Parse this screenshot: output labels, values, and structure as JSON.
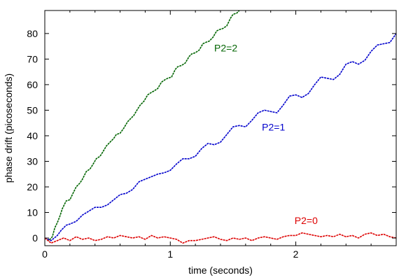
{
  "chart_data": {
    "type": "line",
    "title": "",
    "xlabel": "time (seconds)",
    "ylabel": "phase drift (picoseconds)",
    "xlim": [
      0,
      2.8
    ],
    "ylim": [
      -3,
      89
    ],
    "x_ticks": [
      0,
      1,
      2
    ],
    "y_ticks": [
      0,
      10,
      20,
      30,
      40,
      50,
      60,
      70,
      80
    ],
    "grid": false,
    "legend": "none",
    "series": [
      {
        "label": "P2=2",
        "color": "#006400",
        "x": [
          0.0,
          0.03,
          0.06,
          0.08,
          0.1,
          0.12,
          0.14,
          0.17,
          0.2,
          0.22,
          0.25,
          0.28,
          0.3,
          0.33,
          0.36,
          0.38,
          0.41,
          0.44,
          0.46,
          0.49,
          0.52,
          0.55,
          0.57,
          0.6,
          0.63,
          0.66,
          0.68,
          0.71,
          0.74,
          0.76,
          0.79,
          0.82,
          0.85,
          0.87,
          0.9,
          0.93,
          0.96,
          0.98,
          1.01,
          1.04,
          1.06,
          1.09,
          1.12,
          1.15,
          1.17,
          1.2,
          1.23,
          1.26,
          1.28,
          1.31,
          1.34,
          1.37,
          1.39,
          1.42,
          1.45,
          1.48,
          1.5,
          1.53,
          1.55
        ],
        "y": [
          0.0,
          -1.0,
          0.5,
          4.0,
          6.0,
          8.5,
          11.5,
          14.5,
          15.0,
          17.0,
          20.0,
          21.5,
          23.0,
          26.0,
          27.0,
          28.5,
          31.0,
          32.0,
          33.5,
          36.0,
          37.5,
          39.0,
          40.5,
          41.0,
          43.0,
          45.5,
          46.5,
          48.0,
          50.5,
          52.0,
          53.5,
          56.0,
          57.0,
          57.5,
          58.5,
          61.0,
          62.0,
          62.5,
          63.0,
          66.0,
          67.0,
          67.5,
          68.5,
          71.0,
          72.0,
          72.5,
          73.5,
          76.0,
          76.5,
          77.0,
          78.5,
          81.0,
          81.5,
          82.0,
          83.0,
          86.0,
          87.5,
          88.0,
          89.0
        ]
      },
      {
        "label": "P2=1",
        "color": "#0000cc",
        "x": [
          0.0,
          0.05,
          0.1,
          0.13,
          0.17,
          0.2,
          0.25,
          0.3,
          0.35,
          0.4,
          0.45,
          0.5,
          0.55,
          0.6,
          0.65,
          0.7,
          0.75,
          0.8,
          0.85,
          0.9,
          0.95,
          1.0,
          1.05,
          1.1,
          1.15,
          1.2,
          1.25,
          1.3,
          1.35,
          1.4,
          1.45,
          1.5,
          1.55,
          1.6,
          1.65,
          1.7,
          1.75,
          1.8,
          1.85,
          1.9,
          1.95,
          2.0,
          2.05,
          2.1,
          2.15,
          2.2,
          2.25,
          2.3,
          2.35,
          2.4,
          2.45,
          2.5,
          2.55,
          2.6,
          2.65,
          2.7,
          2.75,
          2.8
        ],
        "y": [
          0.0,
          -1.0,
          1.0,
          3.0,
          5.0,
          5.5,
          6.5,
          9.0,
          10.5,
          12.0,
          12.0,
          13.0,
          15.0,
          17.0,
          17.5,
          19.0,
          22.0,
          23.0,
          24.0,
          25.0,
          25.5,
          26.5,
          29.0,
          31.0,
          31.0,
          32.0,
          35.0,
          37.0,
          36.5,
          37.5,
          40.5,
          43.5,
          44.0,
          43.5,
          46.0,
          49.0,
          50.0,
          49.5,
          49.0,
          52.0,
          55.5,
          56.0,
          55.0,
          56.5,
          60.0,
          63.0,
          62.5,
          62.0,
          64.0,
          68.0,
          69.0,
          68.0,
          69.5,
          73.0,
          75.5,
          76.0,
          76.5,
          80.0
        ]
      },
      {
        "label": "P2=0",
        "color": "#dd0000",
        "x": [
          0.0,
          0.05,
          0.1,
          0.15,
          0.2,
          0.25,
          0.3,
          0.35,
          0.4,
          0.45,
          0.5,
          0.55,
          0.6,
          0.65,
          0.7,
          0.75,
          0.8,
          0.85,
          0.9,
          0.95,
          1.0,
          1.05,
          1.1,
          1.15,
          1.2,
          1.25,
          1.3,
          1.35,
          1.4,
          1.45,
          1.5,
          1.55,
          1.6,
          1.65,
          1.7,
          1.75,
          1.8,
          1.85,
          1.9,
          1.95,
          2.0,
          2.05,
          2.1,
          2.15,
          2.2,
          2.25,
          2.3,
          2.35,
          2.4,
          2.45,
          2.5,
          2.55,
          2.6,
          2.65,
          2.7,
          2.75,
          2.8
        ],
        "y": [
          0.0,
          -2.0,
          -1.0,
          0.0,
          -1.0,
          0.5,
          -0.5,
          0.0,
          -1.0,
          -0.5,
          0.5,
          0.0,
          1.0,
          0.5,
          0.0,
          0.5,
          -0.5,
          1.0,
          0.0,
          0.5,
          0.0,
          -0.5,
          -2.0,
          -1.0,
          -1.0,
          -0.5,
          0.0,
          0.5,
          -0.5,
          -1.0,
          0.0,
          -0.5,
          0.0,
          -1.0,
          0.0,
          0.5,
          0.0,
          -0.5,
          0.5,
          1.0,
          1.0,
          2.0,
          1.5,
          1.0,
          0.5,
          1.0,
          0.5,
          1.5,
          0.5,
          1.0,
          0.0,
          1.5,
          2.0,
          1.0,
          1.5,
          0.5,
          0.0
        ]
      }
    ],
    "annotations": [
      {
        "text": "P2=2",
        "x": 1.35,
        "y": 73,
        "color": "#006400"
      },
      {
        "text": "P2=1",
        "x": 1.73,
        "y": 42,
        "color": "#0000cc"
      },
      {
        "text": "P2=0",
        "x": 1.99,
        "y": 5.5,
        "color": "#dd0000"
      }
    ]
  }
}
